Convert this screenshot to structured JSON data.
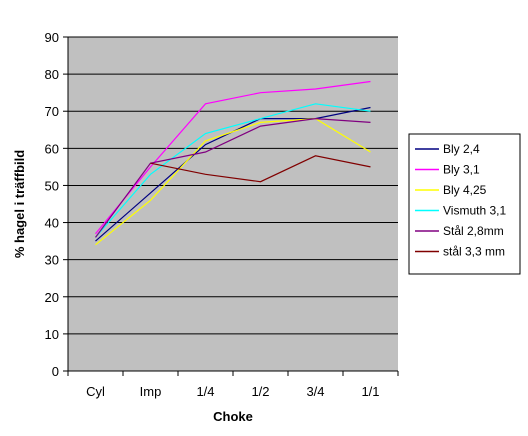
{
  "chart_data": {
    "type": "line",
    "title": "",
    "xlabel": "Choke",
    "ylabel": "% hagel i träffbild",
    "categories": [
      "Cyl",
      "Imp",
      "1/4",
      "1/2",
      "3/4",
      "1/1"
    ],
    "ylim": [
      0,
      90
    ],
    "yticks": [
      0,
      10,
      20,
      30,
      40,
      50,
      60,
      70,
      80,
      90
    ],
    "grid": "horizontal",
    "plot_background": "#c0c0c0",
    "legend_position": "right",
    "series": [
      {
        "name": "Bly 2,4",
        "color": "#000080",
        "values": [
          35,
          48,
          61,
          68,
          68,
          71
        ]
      },
      {
        "name": "Bly 3,1",
        "color": "#ff00ff",
        "values": [
          37,
          55,
          72,
          75,
          76,
          78
        ]
      },
      {
        "name": "Bly 4,25",
        "color": "#ffff00",
        "values": [
          34,
          46,
          62,
          67,
          68,
          59
        ]
      },
      {
        "name": "Vismuth 3,1",
        "color": "#00ffff",
        "values": [
          36,
          53,
          64,
          68,
          72,
          70
        ]
      },
      {
        "name": "Stål 2,8mm",
        "color": "#800080",
        "values": [
          36,
          56,
          59,
          66,
          68,
          67
        ]
      },
      {
        "name": "stål 3,3 mm",
        "color": "#800000",
        "values": [
          null,
          56,
          53,
          51,
          58,
          55
        ]
      }
    ]
  }
}
